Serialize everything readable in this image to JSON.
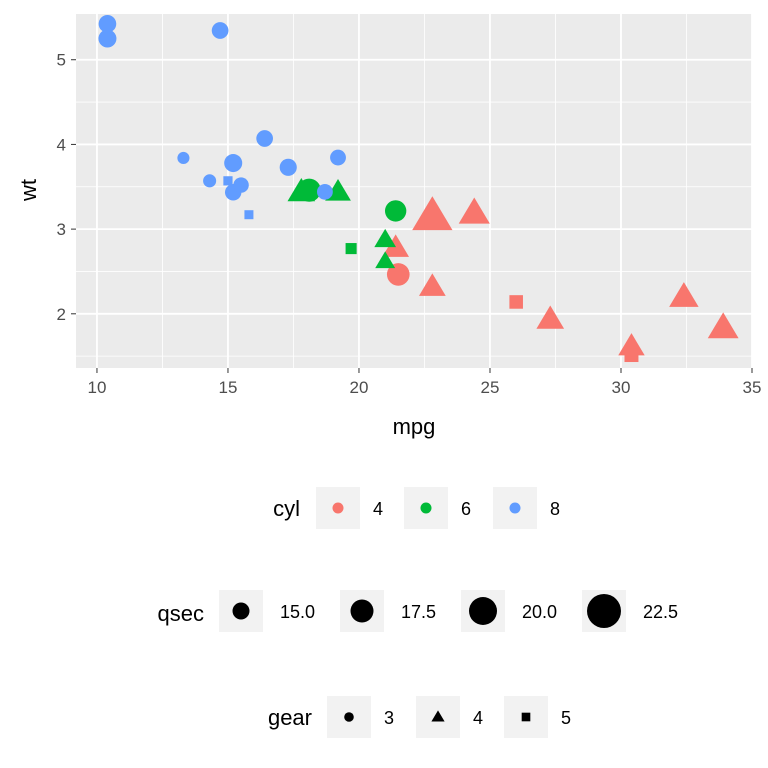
{
  "chart_data": {
    "type": "scatter",
    "title": "",
    "xlabel": "mpg",
    "ylabel": "wt",
    "xlim": [
      9.2,
      35
    ],
    "ylim": [
      1.36,
      5.54
    ],
    "x_ticks": [
      10,
      15,
      20,
      25,
      30,
      35
    ],
    "x_tick_labels": [
      "10",
      "15",
      "20",
      "25",
      "30",
      "35"
    ],
    "y_ticks": [
      2,
      3,
      4,
      5
    ],
    "y_tick_labels": [
      "2",
      "3",
      "4",
      "5"
    ],
    "grid": true,
    "legend_position": "bottom",
    "colors": {
      "4": "#F8766D",
      "6": "#00BA38",
      "8": "#619CFF"
    },
    "points": [
      {
        "mpg": 21.0,
        "wt": 2.62,
        "cyl": "6",
        "qsec": 16.46,
        "gear": "4"
      },
      {
        "mpg": 21.0,
        "wt": 2.875,
        "cyl": "6",
        "qsec": 17.02,
        "gear": "4"
      },
      {
        "mpg": 22.8,
        "wt": 2.32,
        "cyl": "4",
        "qsec": 18.61,
        "gear": "4"
      },
      {
        "mpg": 21.4,
        "wt": 3.215,
        "cyl": "6",
        "qsec": 19.44,
        "gear": "3"
      },
      {
        "mpg": 18.7,
        "wt": 3.44,
        "cyl": "8",
        "qsec": 17.02,
        "gear": "3"
      },
      {
        "mpg": 18.1,
        "wt": 3.46,
        "cyl": "6",
        "qsec": 20.22,
        "gear": "3"
      },
      {
        "mpg": 14.3,
        "wt": 3.57,
        "cyl": "8",
        "qsec": 15.84,
        "gear": "3"
      },
      {
        "mpg": 24.4,
        "wt": 3.19,
        "cyl": "4",
        "qsec": 20.0,
        "gear": "4"
      },
      {
        "mpg": 22.8,
        "wt": 3.15,
        "cyl": "4",
        "qsec": 22.9,
        "gear": "4"
      },
      {
        "mpg": 19.2,
        "wt": 3.44,
        "cyl": "6",
        "qsec": 18.3,
        "gear": "4"
      },
      {
        "mpg": 17.8,
        "wt": 3.44,
        "cyl": "6",
        "qsec": 18.9,
        "gear": "4"
      },
      {
        "mpg": 16.4,
        "wt": 4.07,
        "cyl": "8",
        "qsec": 17.4,
        "gear": "3"
      },
      {
        "mpg": 17.3,
        "wt": 3.73,
        "cyl": "8",
        "qsec": 17.6,
        "gear": "3"
      },
      {
        "mpg": 15.2,
        "wt": 3.78,
        "cyl": "8",
        "qsec": 18.0,
        "gear": "3"
      },
      {
        "mpg": 10.4,
        "wt": 5.25,
        "cyl": "8",
        "qsec": 17.98,
        "gear": "3"
      },
      {
        "mpg": 10.4,
        "wt": 5.424,
        "cyl": "8",
        "qsec": 17.82,
        "gear": "3"
      },
      {
        "mpg": 14.7,
        "wt": 5.345,
        "cyl": "8",
        "qsec": 17.42,
        "gear": "3"
      },
      {
        "mpg": 32.4,
        "wt": 2.2,
        "cyl": "4",
        "qsec": 19.47,
        "gear": "4"
      },
      {
        "mpg": 30.4,
        "wt": 1.615,
        "cyl": "4",
        "qsec": 18.52,
        "gear": "4"
      },
      {
        "mpg": 33.9,
        "wt": 1.835,
        "cyl": "4",
        "qsec": 19.9,
        "gear": "4"
      },
      {
        "mpg": 21.5,
        "wt": 2.465,
        "cyl": "4",
        "qsec": 20.01,
        "gear": "3"
      },
      {
        "mpg": 15.5,
        "wt": 3.52,
        "cyl": "8",
        "qsec": 16.87,
        "gear": "3"
      },
      {
        "mpg": 15.2,
        "wt": 3.435,
        "cyl": "8",
        "qsec": 17.3,
        "gear": "3"
      },
      {
        "mpg": 13.3,
        "wt": 3.84,
        "cyl": "8",
        "qsec": 15.41,
        "gear": "3"
      },
      {
        "mpg": 19.2,
        "wt": 3.845,
        "cyl": "8",
        "qsec": 17.05,
        "gear": "3"
      },
      {
        "mpg": 27.3,
        "wt": 1.935,
        "cyl": "4",
        "qsec": 18.9,
        "gear": "4"
      },
      {
        "mpg": 26.0,
        "wt": 2.14,
        "cyl": "4",
        "qsec": 16.7,
        "gear": "5"
      },
      {
        "mpg": 30.4,
        "wt": 1.513,
        "cyl": "4",
        "qsec": 16.9,
        "gear": "5"
      },
      {
        "mpg": 15.8,
        "wt": 3.17,
        "cyl": "8",
        "qsec": 14.5,
        "gear": "5"
      },
      {
        "mpg": 19.7,
        "wt": 2.77,
        "cyl": "6",
        "qsec": 15.5,
        "gear": "5"
      },
      {
        "mpg": 15.0,
        "wt": 3.57,
        "cyl": "8",
        "qsec": 14.6,
        "gear": "5"
      },
      {
        "mpg": 21.4,
        "wt": 2.78,
        "cyl": "4",
        "qsec": 18.6,
        "gear": "4"
      }
    ],
    "legends": {
      "cyl": {
        "title": "cyl",
        "items": [
          {
            "label": "4",
            "color": "#F8766D"
          },
          {
            "label": "6",
            "color": "#00BA38"
          },
          {
            "label": "8",
            "color": "#619CFF"
          }
        ]
      },
      "qsec": {
        "title": "qsec",
        "items": [
          {
            "label": "15.0",
            "value": 15.0
          },
          {
            "label": "17.5",
            "value": 17.5
          },
          {
            "label": "20.0",
            "value": 20.0
          },
          {
            "label": "22.5",
            "value": 22.5
          }
        ]
      },
      "gear": {
        "title": "gear",
        "items": [
          {
            "label": "3",
            "shape": "circle"
          },
          {
            "label": "4",
            "shape": "triangle"
          },
          {
            "label": "5",
            "shape": "square"
          }
        ]
      }
    }
  }
}
